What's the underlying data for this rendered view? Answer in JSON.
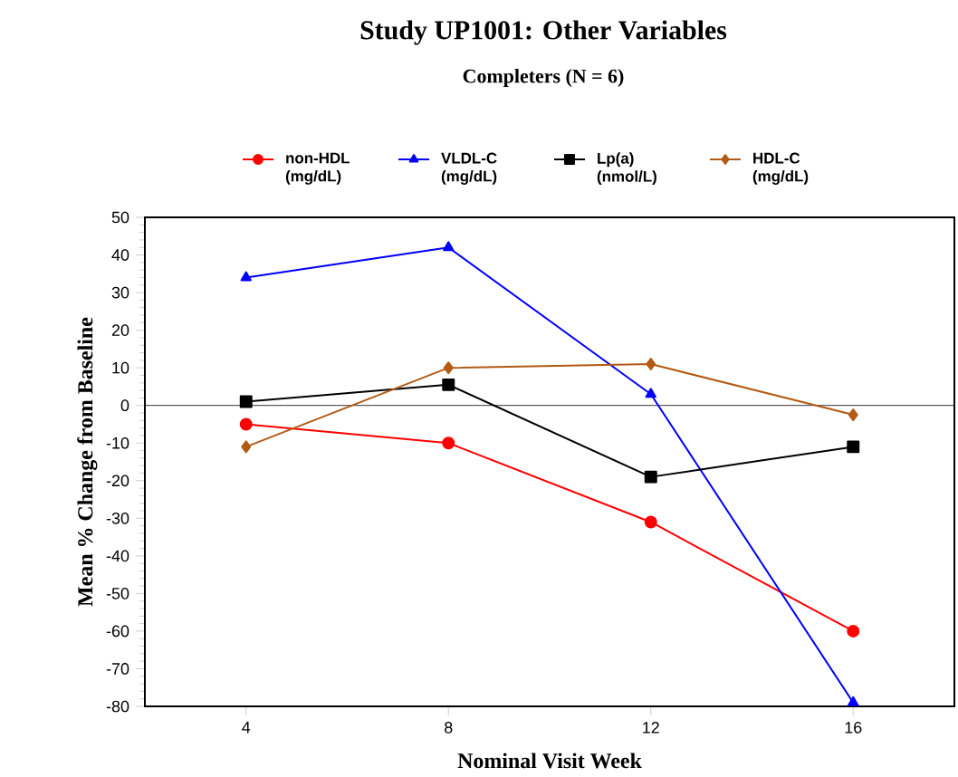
{
  "chart_data": {
    "type": "line",
    "title": "Study UP1001: Other Variables",
    "subtitle": "Completers (N = 6)",
    "xlabel": "Nominal Visit Week",
    "ylabel": "Mean % Change from Baseline",
    "x": [
      4,
      8,
      12,
      16
    ],
    "series": [
      {
        "name": "non-HDL (mg/dL)",
        "color": "#ff0000",
        "marker": "circle",
        "values": [
          -5,
          -10,
          -31,
          -60
        ]
      },
      {
        "name": "VLDL-C (mg/dL)",
        "color": "#0000ff",
        "marker": "triangle",
        "values": [
          34,
          42,
          3,
          -79
        ]
      },
      {
        "name": "Lp(a) (nmol/L)",
        "color": "#000000",
        "marker": "square",
        "values": [
          1,
          5.5,
          -19,
          -11
        ]
      },
      {
        "name": "HDL-C (mg/dL)",
        "color": "#b35a14",
        "marker": "diamond",
        "values": [
          -11,
          10,
          11,
          -2.5
        ]
      }
    ],
    "xlim": [
      2,
      18
    ],
    "xticks": [
      4,
      8,
      12,
      16
    ],
    "ylim": [
      -80,
      50
    ],
    "yticks": [
      -80,
      -70,
      -60,
      -50,
      -40,
      -30,
      -20,
      -10,
      0,
      10,
      20,
      30,
      40,
      50
    ],
    "ref_lines": [
      {
        "axis": "y",
        "value": 0,
        "color": "#000000"
      }
    ],
    "grid": false,
    "legend": "top",
    "line_style": "solid"
  }
}
